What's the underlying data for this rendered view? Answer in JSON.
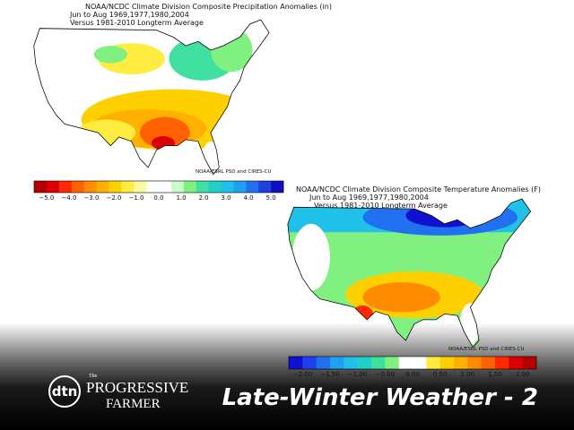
{
  "maps": [
    {
      "title_lines": [
        "NOAA/NCDC Climate Division Composite Precipitation Anomalies (in)",
        "Jun to Aug   1969,1977,1980,2004",
        "Versus 1981-2010 Longterm Average"
      ],
      "credit": "NOAA/ESRL PSD and CIRES-CU",
      "colorbar": {
        "ticks": [
          "−5.0",
          "−4.0",
          "−3.0",
          "−2.0",
          "−1.0",
          "0.0",
          "1.0",
          "2.0",
          "3.0",
          "4.0",
          "5.0"
        ],
        "colors": [
          "#b40000",
          "#dc0000",
          "#ff2800",
          "#ff6000",
          "#ff8c00",
          "#ffb000",
          "#ffd000",
          "#ffec40",
          "#fffaa0",
          "#ffffff",
          "#ffffff",
          "#c8ffc8",
          "#80f080",
          "#40e0a0",
          "#20d0c8",
          "#20c0e8",
          "#20a0f0",
          "#2070f0",
          "#2040e0",
          "#1010c0"
        ]
      }
    },
    {
      "title_lines": [
        "NOAA/NCDC Climate Division Composite Temperature Anomalies (F)",
        "Jun to Aug   1969,1977,1980,2004",
        "Versus 1981-2010 Longterm Average"
      ],
      "credit": "NOAA/ESRL PSD and CIRES-CU",
      "colorbar": {
        "ticks": [
          "−2.00",
          "−1.50",
          "−1.00",
          "−0.50",
          "0.00",
          "0.50",
          "1.00",
          "1.50",
          "2.00"
        ],
        "colors": [
          "#1010d0",
          "#2040f0",
          "#2070f0",
          "#20a0f0",
          "#20c0e8",
          "#20d0c8",
          "#40e0a0",
          "#80f080",
          "#ffffff",
          "#ffffff",
          "#ffec40",
          "#ffd000",
          "#ffb000",
          "#ff8c00",
          "#ff6000",
          "#ff2800",
          "#dc0000",
          "#b40000"
        ]
      }
    }
  ],
  "footer": {
    "logo": "dtn",
    "brand_the": "The",
    "brand_line1": "PROGRESSIVE",
    "brand_line2": "FARMER",
    "slide_title": "Late-Winter Weather - 2"
  }
}
